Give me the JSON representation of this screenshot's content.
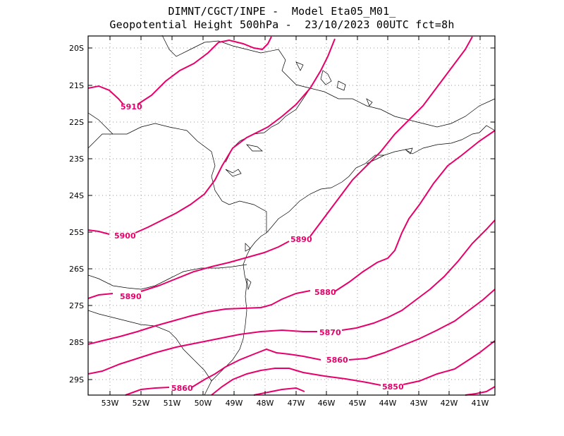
{
  "title": {
    "line1": "DIMNT/CGCT/INPE -  Model Eta05_M01_",
    "line2": "Geopotential Height 500hPa -  23/10/2023 00UTC fct=8h"
  },
  "axes": {
    "lat_labels": [
      "20S",
      "21S",
      "22S",
      "23S",
      "24S",
      "25S",
      "26S",
      "27S",
      "28S",
      "29S"
    ],
    "lon_labels": [
      "53W",
      "52W",
      "51W",
      "50W",
      "49W",
      "48W",
      "47W",
      "46W",
      "45W",
      "44W",
      "43W",
      "42W",
      "41W"
    ]
  },
  "contour_labels": [
    "5910",
    "5900",
    "5890",
    "5890",
    "5880",
    "5870",
    "5860",
    "5860",
    "5850"
  ],
  "colors": {
    "contour": "#e8006a",
    "coast": "#000000",
    "grid": "#888888"
  }
}
